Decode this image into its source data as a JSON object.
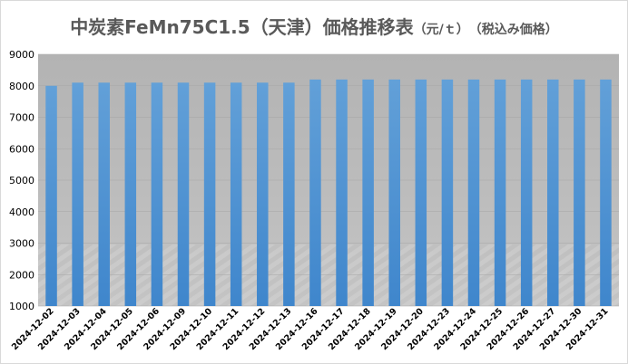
{
  "chart_data": {
    "type": "bar",
    "title": "中炭素FeMn75C1.5（天津）価格推移表",
    "subtitle": "（元/ｔ）　（税込み価格）",
    "xlabel": "",
    "ylabel": "",
    "categories": [
      "2024-12-02",
      "2024-12-03",
      "2024-12-04",
      "2024-12-05",
      "2024-12-06",
      "2024-12-09",
      "2024-12-10",
      "2024-12-11",
      "2024-12-12",
      "2024-12-13",
      "2024-12-16",
      "2024-12-17",
      "2024-12-18",
      "2024-12-19",
      "2024-12-20",
      "2024-12-23",
      "2024-12-24",
      "2024-12-25",
      "2024-12-26",
      "2024-12-27",
      "2024-12-30",
      "2024-12-31"
    ],
    "series": [
      {
        "values": [
          8000,
          8100,
          8100,
          8100,
          8100,
          8100,
          8100,
          8100,
          8100,
          8100,
          8200,
          8200,
          8200,
          8200,
          8200,
          8200,
          8200,
          8200,
          8200,
          8200,
          8200,
          8200
        ]
      }
    ],
    "ylim": [
      1000,
      9000
    ],
    "yticks": [
      1000,
      2000,
      3000,
      4000,
      5000,
      6000,
      7000,
      8000,
      9000
    ],
    "grid": true,
    "legend": "none",
    "colors": {
      "bar": "#5b9bd5",
      "plot_background": "#c0c0c0"
    }
  }
}
